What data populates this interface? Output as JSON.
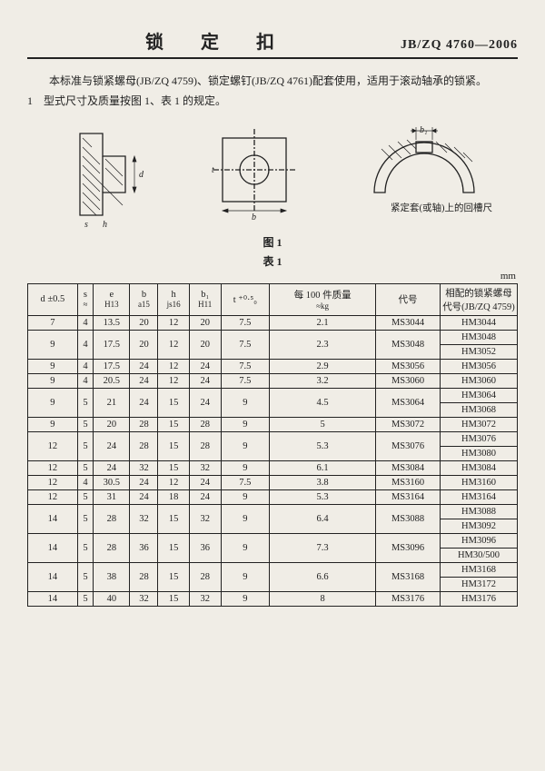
{
  "header": {
    "title": "锁 定 扣",
    "std": "JB/ZQ 4760—2006"
  },
  "intro": {
    "p1": "本标准与锁紧螺母(JB/ZQ 4759)、锁定螺钉(JB/ZQ 4761)配套使用，适用于滚动轴承的锁紧。",
    "p2": "1　型式尺寸及质量按图 1、表 1 的规定。"
  },
  "figure": {
    "caption_fig": "图 1",
    "caption_tab": "表 1",
    "note": "紧定套(或轴)上的回槽尺寸",
    "dim_d": "d",
    "dim_s": "s",
    "dim_h": "h",
    "dim_b": "b",
    "dim_t": "t",
    "dim_b1": "b₁"
  },
  "unit": "mm",
  "columns": {
    "d": "d ±0.5",
    "s": "s",
    "s_sub": "≈",
    "e": "e",
    "e_sub": "H13",
    "b": "b",
    "b_sub": "a15",
    "h": "h",
    "h_sub": "js16",
    "b1": "b₁",
    "b1_sub": "H11",
    "t": "t ⁺⁰·⁵₀",
    "mass": "每 100 件质量",
    "mass_sub": "≈kg",
    "code": "代号",
    "mate": "相配的锁紧螺母代号(JB/ZQ 4759)"
  },
  "rows": [
    {
      "d": "7",
      "s": "4",
      "e": "13.5",
      "b": "20",
      "h": "12",
      "b1": "20",
      "t": "7.5",
      "mass": "2.1",
      "code": "MS3044",
      "mate": [
        "HM3044"
      ]
    },
    {
      "d": "9",
      "s": "4",
      "e": "17.5",
      "b": "20",
      "h": "12",
      "b1": "20",
      "t": "7.5",
      "mass": "2.3",
      "code": "MS3048",
      "mate": [
        "HM3048",
        "HM3052"
      ]
    },
    {
      "d": "9",
      "s": "4",
      "e": "17.5",
      "b": "24",
      "h": "12",
      "b1": "24",
      "t": "7.5",
      "mass": "2.9",
      "code": "MS3056",
      "mate": [
        "HM3056"
      ]
    },
    {
      "d": "9",
      "s": "4",
      "e": "20.5",
      "b": "24",
      "h": "12",
      "b1": "24",
      "t": "7.5",
      "mass": "3.2",
      "code": "MS3060",
      "mate": [
        "HM3060"
      ]
    },
    {
      "d": "9",
      "s": "5",
      "e": "21",
      "b": "24",
      "h": "15",
      "b1": "24",
      "t": "9",
      "mass": "4.5",
      "code": "MS3064",
      "mate": [
        "HM3064",
        "HM3068"
      ]
    },
    {
      "d": "9",
      "s": "5",
      "e": "20",
      "b": "28",
      "h": "15",
      "b1": "28",
      "t": "9",
      "mass": "5",
      "code": "MS3072",
      "mate": [
        "HM3072"
      ]
    },
    {
      "d": "12",
      "s": "5",
      "e": "24",
      "b": "28",
      "h": "15",
      "b1": "28",
      "t": "9",
      "mass": "5.3",
      "code": "MS3076",
      "mate": [
        "HM3076",
        "HM3080"
      ]
    },
    {
      "d": "12",
      "s": "5",
      "e": "24",
      "b": "32",
      "h": "15",
      "b1": "32",
      "t": "9",
      "mass": "6.1",
      "code": "MS3084",
      "mate": [
        "HM3084"
      ]
    },
    {
      "d": "12",
      "s": "4",
      "e": "30.5",
      "b": "24",
      "h": "12",
      "b1": "24",
      "t": "7.5",
      "mass": "3.8",
      "code": "MS3160",
      "mate": [
        "HM3160"
      ]
    },
    {
      "d": "12",
      "s": "5",
      "e": "31",
      "b": "24",
      "h": "18",
      "b1": "24",
      "t": "9",
      "mass": "5.3",
      "code": "MS3164",
      "mate": [
        "HM3164"
      ]
    },
    {
      "d": "14",
      "s": "5",
      "e": "28",
      "b": "32",
      "h": "15",
      "b1": "32",
      "t": "9",
      "mass": "6.4",
      "code": "MS3088",
      "mate": [
        "HM3088",
        "HM3092"
      ]
    },
    {
      "d": "14",
      "s": "5",
      "e": "28",
      "b": "36",
      "h": "15",
      "b1": "36",
      "t": "9",
      "mass": "7.3",
      "code": "MS3096",
      "mate": [
        "HM3096",
        "HM30/500"
      ]
    },
    {
      "d": "14",
      "s": "5",
      "e": "38",
      "b": "28",
      "h": "15",
      "b1": "28",
      "t": "9",
      "mass": "6.6",
      "code": "MS3168",
      "mate": [
        "HM3168",
        "HM3172"
      ]
    },
    {
      "d": "14",
      "s": "5",
      "e": "40",
      "b": "32",
      "h": "15",
      "b1": "32",
      "t": "9",
      "mass": "8",
      "code": "MS3176",
      "mate": [
        "HM3176"
      ]
    }
  ]
}
